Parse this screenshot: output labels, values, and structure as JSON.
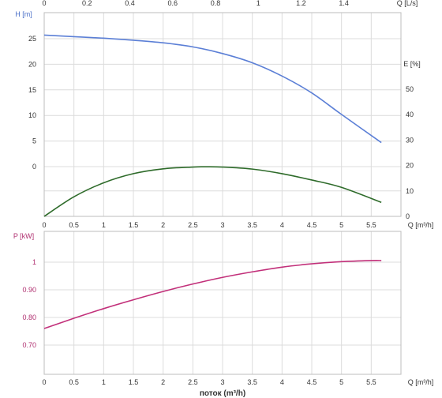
{
  "chart_data": [
    {
      "type": "line",
      "title": "",
      "top_axis": {
        "label": "Q [L/s]",
        "ticks": [
          "0",
          "0.2",
          "0.4",
          "0.6",
          "0.8",
          "1",
          "1.2",
          "1.4"
        ]
      },
      "x_label": "Q [m³/h]",
      "x_ticks": [
        "0",
        "0.5",
        "1",
        "1.5",
        "2",
        "2.5",
        "3",
        "3.5",
        "4",
        "4.5",
        "5",
        "5.5"
      ],
      "left_axis": {
        "label": "H [m]",
        "ticks": [
          "25",
          "20",
          "15",
          "10",
          "5",
          "0"
        ],
        "color": "#4a6fc8"
      },
      "right_axis": {
        "label": "E [%]",
        "ticks": [
          "50",
          "40",
          "30",
          "20",
          "10",
          "0"
        ],
        "color": "#444444"
      },
      "xlim": [
        0,
        5.7
      ],
      "grid": true,
      "series": [
        {
          "color": "#5b7fd6",
          "x": [
            0,
            0.5,
            1,
            1.5,
            2,
            2.5,
            3,
            3.5,
            4,
            4.5,
            5,
            5.67
          ],
          "y": [
            25.7,
            25.4,
            25.1,
            24.7,
            24.2,
            23.4,
            22.1,
            20.3,
            17.7,
            14.4,
            10.2,
            4.7
          ]
        },
        {
          "color": "#2e6b2a",
          "x": [
            0,
            0.5,
            1,
            1.5,
            2,
            2.5,
            2.7,
            3,
            3.5,
            4,
            4.5,
            5,
            5.67
          ],
          "y": [
            0,
            7.7,
            13.2,
            16.8,
            18.7,
            19.4,
            19.5,
            19.4,
            18.6,
            16.8,
            14.3,
            11.4,
            5.5
          ]
        }
      ]
    },
    {
      "type": "line",
      "title": "",
      "y_label": "P [kW]",
      "y_ticks": [
        "1",
        "0.90",
        "0.80",
        "0.70"
      ],
      "x_label": "Q [m³/h]",
      "x_ticks": [
        "0",
        "0.5",
        "1",
        "1.5",
        "2",
        "2.5",
        "3",
        "3.5",
        "4",
        "4.5",
        "5",
        "5.5"
      ],
      "xlabel_bottom": "поток (m³/h)",
      "xlim": [
        0,
        5.7
      ],
      "ylim": [
        0.6,
        1.09
      ],
      "grid": true,
      "axis_color": "#b03070",
      "series": [
        {
          "color": "#c2307a",
          "x": [
            0,
            0.5,
            1,
            1.5,
            2,
            2.5,
            3,
            3.5,
            4,
            4.5,
            5,
            5.5,
            5.67
          ],
          "y": [
            0.76,
            0.797,
            0.832,
            0.864,
            0.894,
            0.921,
            0.945,
            0.965,
            0.982,
            0.994,
            1.002,
            1.006,
            1.006
          ]
        }
      ]
    }
  ]
}
